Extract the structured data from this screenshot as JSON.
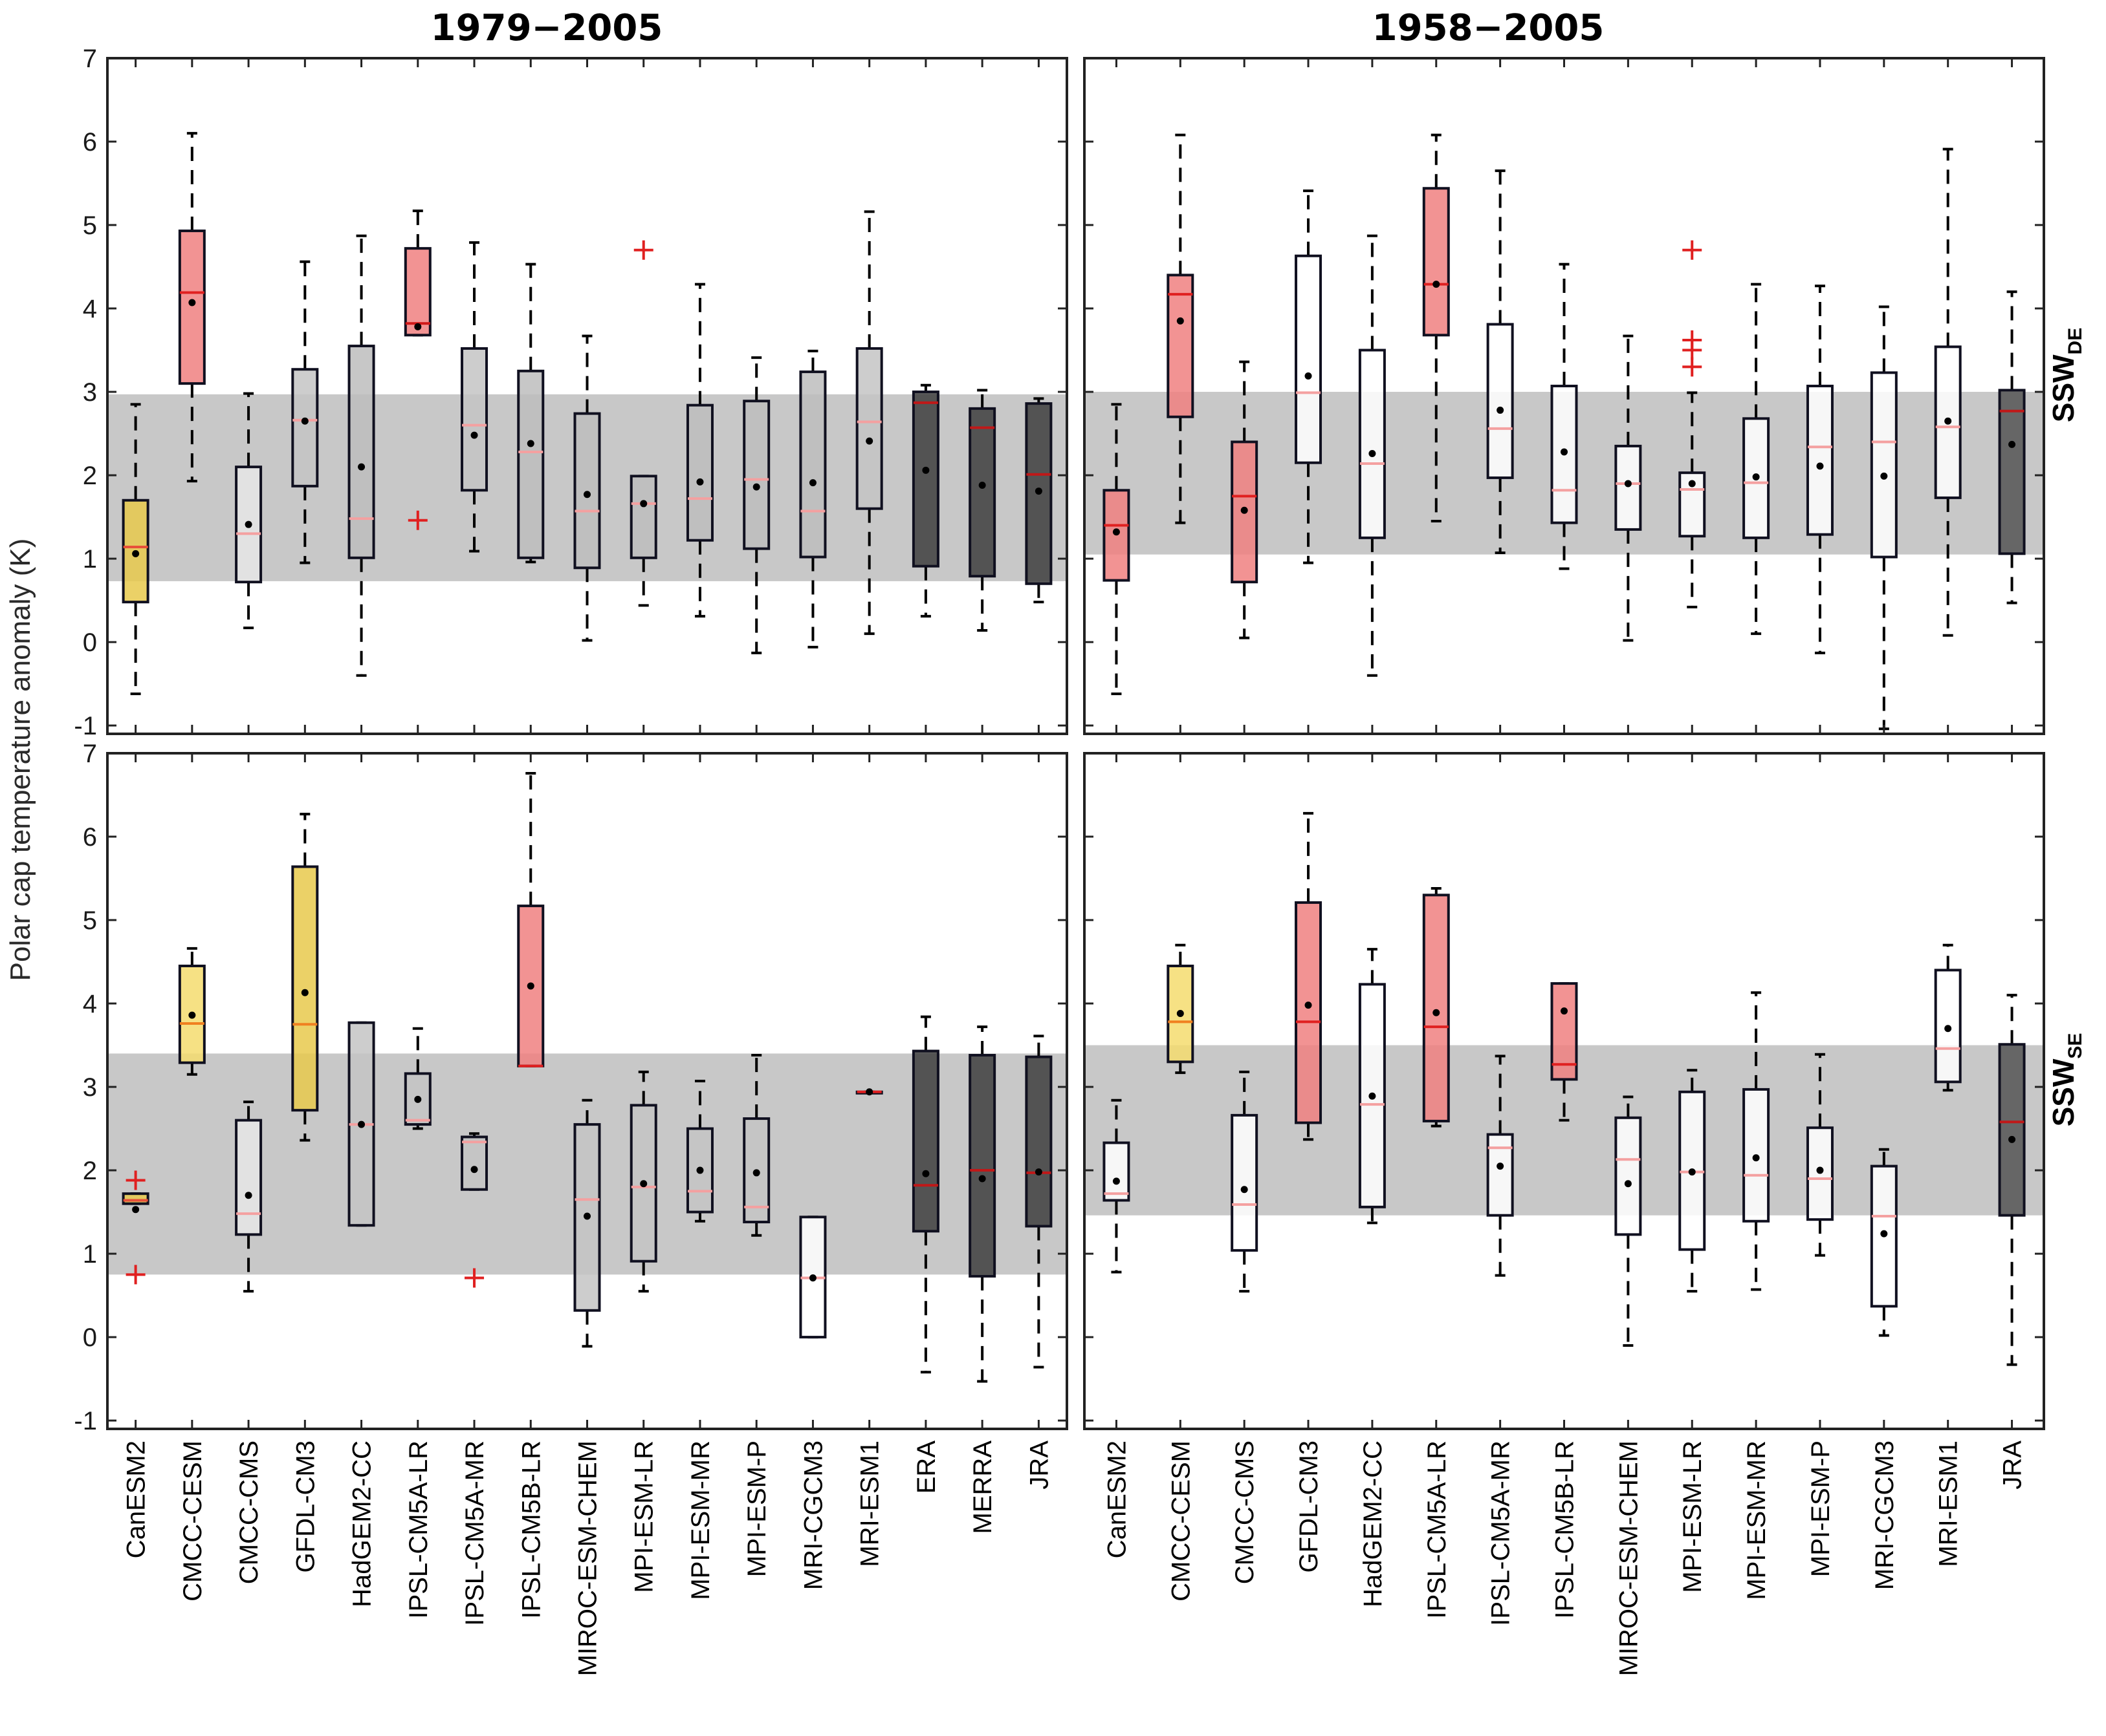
{
  "figure": {
    "ylabel": "Polar cap temperature anomaly (K)",
    "row_labels": [
      {
        "main": "SSW",
        "sub": "DE"
      },
      {
        "main": "SSW",
        "sub": "SE"
      }
    ]
  },
  "chart_data": [
    {
      "type": "box",
      "panel": "top-left",
      "title": "1979−2005",
      "ylim": [
        -1.1,
        7
      ],
      "yticks": [
        -1,
        0,
        1,
        2,
        3,
        4,
        5,
        6,
        7
      ],
      "band": [
        0.73,
        2.97
      ],
      "categories": [
        "CanESM2",
        "CMCC-CESM",
        "CMCC-CMS",
        "GFDL-CM3",
        "HadGEM2-CC",
        "IPSL-CM5A-LR",
        "IPSL-CM5A-MR",
        "IPSL-CM5B-LR",
        "MIROC-ESM-CHEM",
        "MPI-ESM-LR",
        "MPI-ESM-MR",
        "MPI-ESM-P",
        "MRI-CGCM3",
        "MRI-ESM1",
        "ERA",
        "MERRA",
        "JRA"
      ],
      "boxes": [
        {
          "wlo": -0.62,
          "q1": 0.48,
          "med": 1.14,
          "q3": 1.7,
          "whi": 2.85,
          "mean": 1.06,
          "fill": "#e8c94c",
          "medc": "#e8503a",
          "out": []
        },
        {
          "wlo": 1.93,
          "q1": 3.1,
          "med": 4.19,
          "q3": 4.93,
          "whi": 6.1,
          "mean": 4.07,
          "fill": "#f08080",
          "medc": "#e02020",
          "out": []
        },
        {
          "wlo": 0.17,
          "q1": 0.72,
          "med": 1.3,
          "q3": 2.1,
          "whi": 2.98,
          "mean": 1.41,
          "fill": "#e6e6e6",
          "medc": "#f4a0a0",
          "out": []
        },
        {
          "wlo": 0.95,
          "q1": 1.87,
          "med": 2.66,
          "q3": 3.27,
          "whi": 4.56,
          "mean": 2.65,
          "fill": "#c4c4c4",
          "medc": "#f4a0a0",
          "out": []
        },
        {
          "wlo": -0.4,
          "q1": 1.01,
          "med": 1.48,
          "q3": 3.55,
          "whi": 4.87,
          "mean": 2.1,
          "fill": "#bdbdbd",
          "medc": "#f4a0a0",
          "out": []
        },
        {
          "wlo": 3.68,
          "q1": 3.68,
          "med": 3.82,
          "q3": 4.72,
          "whi": 5.17,
          "mean": 3.78,
          "fill": "#f08080",
          "medc": "#d01818",
          "out": [
            1.46
          ]
        },
        {
          "wlo": 1.09,
          "q1": 1.82,
          "med": 2.6,
          "q3": 3.52,
          "whi": 4.79,
          "mean": 2.48,
          "fill": "#c4c4c4",
          "medc": "#f4a0a0",
          "out": []
        },
        {
          "wlo": 0.96,
          "q1": 1.01,
          "med": 2.28,
          "q3": 3.25,
          "whi": 4.53,
          "mean": 2.38,
          "fill": "#bdbdbd",
          "medc": "#f4a0a0",
          "out": []
        },
        {
          "wlo": 0.02,
          "q1": 0.89,
          "med": 1.57,
          "q3": 2.74,
          "whi": 3.67,
          "mean": 1.77,
          "fill": "#bdbdbd",
          "medc": "#f4a0a0",
          "out": []
        },
        {
          "wlo": 0.44,
          "q1": 1.01,
          "med": 1.66,
          "q3": 1.99,
          "whi": 1.99,
          "mean": 1.66,
          "fill": "#bdbdbd",
          "medc": "#f4a0a0",
          "out": [
            4.7
          ]
        },
        {
          "wlo": 0.31,
          "q1": 1.22,
          "med": 1.72,
          "q3": 2.84,
          "whi": 4.29,
          "mean": 1.92,
          "fill": "#bdbdbd",
          "medc": "#f4a0a0",
          "out": []
        },
        {
          "wlo": -0.13,
          "q1": 1.12,
          "med": 1.95,
          "q3": 2.89,
          "whi": 3.41,
          "mean": 1.86,
          "fill": "#bdbdbd",
          "medc": "#f4a0a0",
          "out": []
        },
        {
          "wlo": -0.06,
          "q1": 1.02,
          "med": 1.57,
          "q3": 3.24,
          "whi": 3.49,
          "mean": 1.91,
          "fill": "#bdbdbd",
          "medc": "#f4a0a0",
          "out": []
        },
        {
          "wlo": 0.1,
          "q1": 1.6,
          "med": 2.64,
          "q3": 3.52,
          "whi": 5.16,
          "mean": 2.41,
          "fill": "#c4c4c4",
          "medc": "#f4a0a0",
          "out": []
        },
        {
          "wlo": 0.31,
          "q1": 0.91,
          "med": 2.87,
          "q3": 3.0,
          "whi": 3.08,
          "mean": 2.06,
          "fill": "#3e3e3e",
          "medc": "#c01818",
          "out": []
        },
        {
          "wlo": 0.14,
          "q1": 0.79,
          "med": 2.57,
          "q3": 2.8,
          "whi": 3.02,
          "mean": 1.88,
          "fill": "#3e3e3e",
          "medc": "#c01818",
          "out": []
        },
        {
          "wlo": 0.48,
          "q1": 0.7,
          "med": 2.01,
          "q3": 2.86,
          "whi": 2.92,
          "mean": 1.81,
          "fill": "#3e3e3e",
          "medc": "#c01818",
          "out": []
        }
      ]
    },
    {
      "type": "box",
      "panel": "top-right",
      "title": "1958−2005",
      "ylim": [
        -1.1,
        7
      ],
      "yticks": [
        -1,
        0,
        1,
        2,
        3,
        4,
        5,
        6,
        7
      ],
      "band": [
        1.05,
        3.0
      ],
      "categories": [
        "CanESM2",
        "CMCC-CESM",
        "CMCC-CMS",
        "GFDL-CM3",
        "HadGEM2-CC",
        "IPSL-CM5A-LR",
        "IPSL-CM5A-MR",
        "IPSL-CM5B-LR",
        "MIROC-ESM-CHEM",
        "MPI-ESM-LR",
        "MPI-ESM-MR",
        "MPI-ESM-P",
        "MRI-CGCM3",
        "MRI-ESM1",
        "JRA"
      ],
      "boxes": [
        {
          "wlo": -0.62,
          "q1": 0.74,
          "med": 1.4,
          "q3": 1.82,
          "whi": 2.85,
          "mean": 1.32,
          "fill": "#f08080",
          "medc": "#e02020",
          "out": []
        },
        {
          "wlo": 1.43,
          "q1": 2.7,
          "med": 4.17,
          "q3": 4.4,
          "whi": 6.08,
          "mean": 3.85,
          "fill": "#f08080",
          "medc": "#e02020",
          "out": []
        },
        {
          "wlo": 0.05,
          "q1": 0.72,
          "med": 1.75,
          "q3": 2.4,
          "whi": 3.36,
          "mean": 1.58,
          "fill": "#f08080",
          "medc": "#e02020",
          "out": []
        },
        {
          "wlo": 0.95,
          "q1": 2.15,
          "med": 2.99,
          "q3": 4.63,
          "whi": 5.41,
          "mean": 3.19,
          "fill": "#ffffff",
          "medc": "#f4a0a0",
          "out": []
        },
        {
          "wlo": -0.4,
          "q1": 1.25,
          "med": 2.14,
          "q3": 3.5,
          "whi": 4.87,
          "mean": 2.26,
          "fill": "#ffffff",
          "medc": "#f4a0a0",
          "out": []
        },
        {
          "wlo": 1.45,
          "q1": 3.68,
          "med": 4.29,
          "q3": 5.44,
          "whi": 6.08,
          "mean": 4.29,
          "fill": "#f08080",
          "medc": "#e02020",
          "out": []
        },
        {
          "wlo": 1.07,
          "q1": 1.97,
          "med": 2.56,
          "q3": 3.81,
          "whi": 5.65,
          "mean": 2.78,
          "fill": "#ffffff",
          "medc": "#f4a0a0",
          "out": []
        },
        {
          "wlo": 0.88,
          "q1": 1.43,
          "med": 1.82,
          "q3": 3.07,
          "whi": 4.53,
          "mean": 2.28,
          "fill": "#ffffff",
          "medc": "#f4a0a0",
          "out": []
        },
        {
          "wlo": 0.02,
          "q1": 1.35,
          "med": 1.9,
          "q3": 2.35,
          "whi": 3.67,
          "mean": 1.9,
          "fill": "#ffffff",
          "medc": "#f4a0a0",
          "out": []
        },
        {
          "wlo": 0.42,
          "q1": 1.27,
          "med": 1.83,
          "q3": 2.03,
          "whi": 2.99,
          "mean": 1.9,
          "fill": "#ffffff",
          "medc": "#f4a0a0",
          "out": [
            3.3,
            3.5,
            3.62,
            4.7
          ]
        },
        {
          "wlo": 0.1,
          "q1": 1.25,
          "med": 1.91,
          "q3": 2.68,
          "whi": 4.29,
          "mean": 1.98,
          "fill": "#ffffff",
          "medc": "#f4a0a0",
          "out": []
        },
        {
          "wlo": -0.13,
          "q1": 1.29,
          "med": 2.34,
          "q3": 3.07,
          "whi": 4.27,
          "mean": 2.11,
          "fill": "#ffffff",
          "medc": "#f4a0a0",
          "out": []
        },
        {
          "wlo": -1.04,
          "q1": 1.02,
          "med": 2.4,
          "q3": 3.23,
          "whi": 4.02,
          "mean": 1.99,
          "fill": "#ffffff",
          "medc": "#f4a0a0",
          "out": []
        },
        {
          "wlo": 0.08,
          "q1": 1.73,
          "med": 2.58,
          "q3": 3.54,
          "whi": 5.91,
          "mean": 2.65,
          "fill": "#ffffff",
          "medc": "#f4a0a0",
          "out": []
        },
        {
          "wlo": 0.47,
          "q1": 1.06,
          "med": 2.77,
          "q3": 3.02,
          "whi": 4.2,
          "mean": 2.37,
          "fill": "#555555",
          "medc": "#c01818",
          "out": []
        }
      ]
    },
    {
      "type": "box",
      "panel": "bottom-left",
      "title": "",
      "ylim": [
        -1.1,
        7
      ],
      "yticks": [
        -1,
        0,
        1,
        2,
        3,
        4,
        5,
        6,
        7
      ],
      "band": [
        0.75,
        3.4
      ],
      "categories": [
        "CanESM2",
        "CMCC-CESM",
        "CMCC-CMS",
        "GFDL-CM3",
        "HadGEM2-CC",
        "IPSL-CM5A-LR",
        "IPSL-CM5A-MR",
        "IPSL-CM5B-LR",
        "MIROC-ESM-CHEM",
        "MPI-ESM-LR",
        "MPI-ESM-MR",
        "MPI-ESM-P",
        "MRI-CGCM3",
        "MRI-ESM1",
        "ERA",
        "MERRA",
        "JRA"
      ],
      "boxes": [
        {
          "wlo": 1.6,
          "q1": 1.6,
          "med": 1.64,
          "q3": 1.72,
          "whi": 1.72,
          "mean": 1.53,
          "fill": "#e8c94c",
          "medc": "#e8503a",
          "out": [
            0.75,
            1.88
          ]
        },
        {
          "wlo": 3.15,
          "q1": 3.29,
          "med": 3.76,
          "q3": 4.45,
          "whi": 4.66,
          "mean": 3.86,
          "fill": "#f5dc6e",
          "medc": "#f08020",
          "out": []
        },
        {
          "wlo": 0.55,
          "q1": 1.23,
          "med": 1.48,
          "q3": 2.6,
          "whi": 2.82,
          "mean": 1.7,
          "fill": "#e6e6e6",
          "medc": "#f4a0a0",
          "out": []
        },
        {
          "wlo": 2.36,
          "q1": 2.72,
          "med": 3.75,
          "q3": 5.64,
          "whi": 6.27,
          "mean": 4.13,
          "fill": "#e8c94c",
          "medc": "#f08020",
          "out": []
        },
        {
          "wlo": 1.34,
          "q1": 1.34,
          "med": 2.55,
          "q3": 3.77,
          "whi": 3.77,
          "mean": 2.55,
          "fill": "#c4c4c4",
          "medc": "#f4a0a0",
          "out": []
        },
        {
          "wlo": 2.5,
          "q1": 2.55,
          "med": 2.6,
          "q3": 3.16,
          "whi": 3.7,
          "mean": 2.85,
          "fill": "#c4c4c4",
          "medc": "#f4a0a0",
          "out": []
        },
        {
          "wlo": 1.77,
          "q1": 1.77,
          "med": 2.34,
          "q3": 2.4,
          "whi": 2.44,
          "mean": 2.01,
          "fill": "#c4c4c4",
          "medc": "#f4a0a0",
          "out": [
            0.71
          ]
        },
        {
          "wlo": 3.25,
          "q1": 3.25,
          "med": 3.25,
          "q3": 5.17,
          "whi": 6.76,
          "mean": 4.21,
          "fill": "#f08080",
          "medc": "#e02020",
          "out": []
        },
        {
          "wlo": -0.11,
          "q1": 0.32,
          "med": 1.65,
          "q3": 2.55,
          "whi": 2.84,
          "mean": 1.45,
          "fill": "#c4c4c4",
          "medc": "#f4a0a0",
          "out": []
        },
        {
          "wlo": 0.55,
          "q1": 0.91,
          "med": 1.8,
          "q3": 2.78,
          "whi": 3.18,
          "mean": 1.84,
          "fill": "#c4c4c4",
          "medc": "#f4a0a0",
          "out": []
        },
        {
          "wlo": 1.39,
          "q1": 1.5,
          "med": 1.75,
          "q3": 2.5,
          "whi": 3.07,
          "mean": 2.0,
          "fill": "#c4c4c4",
          "medc": "#f4a0a0",
          "out": []
        },
        {
          "wlo": 1.22,
          "q1": 1.38,
          "med": 1.56,
          "q3": 2.62,
          "whi": 3.38,
          "mean": 1.97,
          "fill": "#c4c4c4",
          "medc": "#f4a0a0",
          "out": []
        },
        {
          "wlo": 0.0,
          "q1": 0.0,
          "med": 0.71,
          "q3": 1.44,
          "whi": 1.44,
          "mean": 0.71,
          "fill": "#ffffff",
          "medc": "#f4a0a0",
          "out": []
        },
        {
          "wlo": 2.94,
          "q1": 2.94,
          "med": 2.94,
          "q3": 2.94,
          "whi": 2.94,
          "mean": 2.94,
          "fill": "#c4c4c4",
          "medc": "#e02020",
          "out": []
        },
        {
          "wlo": -0.42,
          "q1": 1.27,
          "med": 1.82,
          "q3": 3.43,
          "whi": 3.84,
          "mean": 1.96,
          "fill": "#3e3e3e",
          "medc": "#c01818",
          "out": []
        },
        {
          "wlo": -0.53,
          "q1": 0.73,
          "med": 2.0,
          "q3": 3.38,
          "whi": 3.72,
          "mean": 1.9,
          "fill": "#3e3e3e",
          "medc": "#c01818",
          "out": []
        },
        {
          "wlo": -0.36,
          "q1": 1.33,
          "med": 1.97,
          "q3": 3.36,
          "whi": 3.61,
          "mean": 1.98,
          "fill": "#3e3e3e",
          "medc": "#c01818",
          "out": []
        }
      ]
    },
    {
      "type": "box",
      "panel": "bottom-right",
      "title": "",
      "ylim": [
        -1.1,
        7
      ],
      "yticks": [
        -1,
        0,
        1,
        2,
        3,
        4,
        5,
        6,
        7
      ],
      "band": [
        1.46,
        3.5
      ],
      "categories": [
        "CanESM2",
        "CMCC-CESM",
        "CMCC-CMS",
        "GFDL-CM3",
        "HadGEM2-CC",
        "IPSL-CM5A-LR",
        "IPSL-CM5A-MR",
        "IPSL-CM5B-LR",
        "MIROC-ESM-CHEM",
        "MPI-ESM-LR",
        "MPI-ESM-MR",
        "MPI-ESM-P",
        "MRI-CGCM3",
        "MRI-ESM1",
        "JRA"
      ],
      "boxes": [
        {
          "wlo": 0.78,
          "q1": 1.64,
          "med": 1.72,
          "q3": 2.33,
          "whi": 2.84,
          "mean": 1.87,
          "fill": "#ffffff",
          "medc": "#f4a0a0",
          "out": []
        },
        {
          "wlo": 3.17,
          "q1": 3.3,
          "med": 3.78,
          "q3": 4.45,
          "whi": 4.7,
          "mean": 3.88,
          "fill": "#f5dc6e",
          "medc": "#f08020",
          "out": []
        },
        {
          "wlo": 0.55,
          "q1": 1.04,
          "med": 1.59,
          "q3": 2.66,
          "whi": 3.18,
          "mean": 1.77,
          "fill": "#ffffff",
          "medc": "#f4a0a0",
          "out": []
        },
        {
          "wlo": 2.37,
          "q1": 2.57,
          "med": 3.78,
          "q3": 5.21,
          "whi": 6.28,
          "mean": 3.98,
          "fill": "#f08080",
          "medc": "#e02020",
          "out": []
        },
        {
          "wlo": 1.37,
          "q1": 1.56,
          "med": 2.79,
          "q3": 4.23,
          "whi": 4.65,
          "mean": 2.89,
          "fill": "#ffffff",
          "medc": "#f4a0a0",
          "out": []
        },
        {
          "wlo": 2.53,
          "q1": 2.59,
          "med": 3.72,
          "q3": 5.3,
          "whi": 5.38,
          "mean": 3.89,
          "fill": "#f08080",
          "medc": "#e02020",
          "out": []
        },
        {
          "wlo": 0.74,
          "q1": 1.46,
          "med": 2.27,
          "q3": 2.43,
          "whi": 3.37,
          "mean": 2.05,
          "fill": "#ffffff",
          "medc": "#f4a0a0",
          "out": []
        },
        {
          "wlo": 2.6,
          "q1": 3.09,
          "med": 3.27,
          "q3": 4.24,
          "whi": 4.24,
          "mean": 3.91,
          "fill": "#f08080",
          "medc": "#e02020",
          "out": []
        },
        {
          "wlo": -0.1,
          "q1": 1.23,
          "med": 2.13,
          "q3": 2.63,
          "whi": 2.88,
          "mean": 1.84,
          "fill": "#ffffff",
          "medc": "#f4a0a0",
          "out": []
        },
        {
          "wlo": 0.55,
          "q1": 1.05,
          "med": 1.98,
          "q3": 2.94,
          "whi": 3.2,
          "mean": 1.98,
          "fill": "#ffffff",
          "medc": "#f4a0a0",
          "out": []
        },
        {
          "wlo": 0.57,
          "q1": 1.39,
          "med": 1.94,
          "q3": 2.97,
          "whi": 4.13,
          "mean": 2.15,
          "fill": "#ffffff",
          "medc": "#f4a0a0",
          "out": []
        },
        {
          "wlo": 0.98,
          "q1": 1.41,
          "med": 1.9,
          "q3": 2.51,
          "whi": 3.39,
          "mean": 2.0,
          "fill": "#ffffff",
          "medc": "#f4a0a0",
          "out": []
        },
        {
          "wlo": 0.02,
          "q1": 0.37,
          "med": 1.45,
          "q3": 2.05,
          "whi": 2.25,
          "mean": 1.24,
          "fill": "#ffffff",
          "medc": "#f4a0a0",
          "out": []
        },
        {
          "wlo": 2.96,
          "q1": 3.06,
          "med": 3.46,
          "q3": 4.4,
          "whi": 4.7,
          "mean": 3.7,
          "fill": "#ffffff",
          "medc": "#f4a0a0",
          "out": []
        },
        {
          "wlo": -0.33,
          "q1": 1.46,
          "med": 2.58,
          "q3": 3.51,
          "whi": 4.1,
          "mean": 2.37,
          "fill": "#555555",
          "medc": "#c01818",
          "out": []
        }
      ]
    }
  ]
}
